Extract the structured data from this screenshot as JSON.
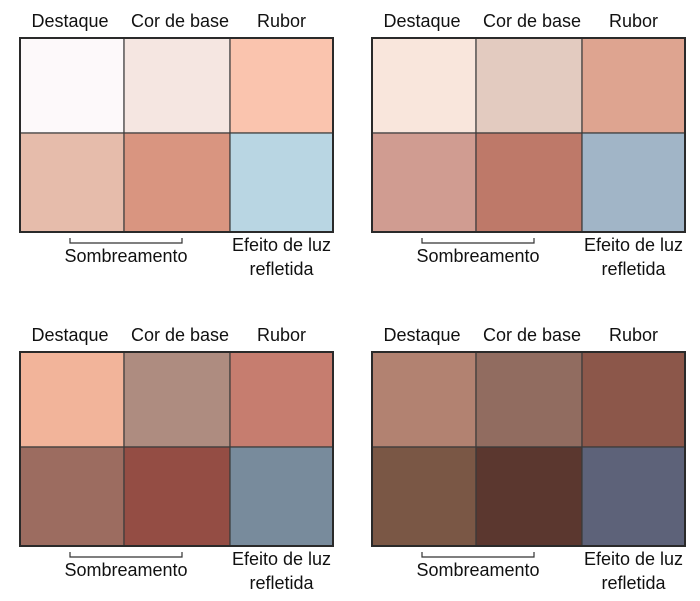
{
  "palettes": [
    {
      "labels": {
        "highlight": "Destaque",
        "base": "Cor de base",
        "blush": "Rubor",
        "shadow": "Sombreamento",
        "reflected": [
          "Efeito de luz",
          "refletida"
        ]
      },
      "swatches": [
        "#fdf9fa",
        "#f5e6e1",
        "#fac4ae",
        "#e6bcab",
        "#d99580",
        "#b9d6e3"
      ]
    },
    {
      "labels": {
        "highlight": "Destaque",
        "base": "Cor de base",
        "blush": "Rubor",
        "shadow": "Sombreamento",
        "reflected": [
          "Efeito de luz",
          "refletida"
        ]
      },
      "swatches": [
        "#f9e6dc",
        "#e3cbc0",
        "#dea490",
        "#d09c91",
        "#be7969",
        "#a1b5c7"
      ]
    },
    {
      "labels": {
        "highlight": "Destaque",
        "base": "Cor de base",
        "blush": "Rubor",
        "shadow": "Sombreamento",
        "reflected": [
          "Efeito de luz",
          "refletida"
        ]
      },
      "swatches": [
        "#f2b49a",
        "#ae8c80",
        "#c67d6f",
        "#9c6c60",
        "#944d44",
        "#788b9c"
      ]
    },
    {
      "labels": {
        "highlight": "Destaque",
        "base": "Cor de base",
        "blush": "Rubor",
        "shadow": "Sombreamento",
        "reflected": [
          "Efeito de luz",
          "refletida"
        ]
      },
      "swatches": [
        "#b28271",
        "#916c60",
        "#8c574a",
        "#7a5745",
        "#5b372f",
        "#5d6279"
      ]
    }
  ]
}
